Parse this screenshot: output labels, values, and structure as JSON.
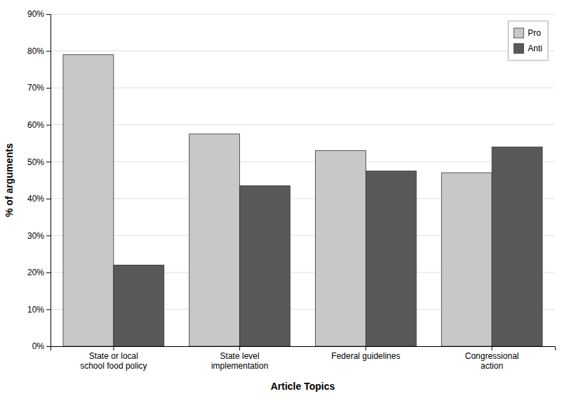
{
  "chart_data": {
    "type": "bar",
    "categories": [
      "State or local\nschool food policy",
      "State level\nimplementation",
      "Federal guidelines",
      "Congressional\naction"
    ],
    "series": [
      {
        "name": "Pro",
        "color": "#C8C8C8",
        "values": [
          79,
          57.5,
          53,
          47
        ]
      },
      {
        "name": "Anti",
        "color": "#595959",
        "values": [
          22,
          43.5,
          47.5,
          54
        ]
      }
    ],
    "xlabel": "Article Topics",
    "ylabel": "% of arguments",
    "ylim": [
      0,
      90
    ],
    "yticks": [
      {
        "value": 0,
        "label": "0%"
      },
      {
        "value": 10,
        "label": "10%"
      },
      {
        "value": 20,
        "label": "20%"
      },
      {
        "value": 30,
        "label": "30%"
      },
      {
        "value": 40,
        "label": "40%"
      },
      {
        "value": 50,
        "label": "50%"
      },
      {
        "value": 60,
        "label": "60%"
      },
      {
        "value": 70,
        "label": "70%"
      },
      {
        "value": 80,
        "label": "80%"
      },
      {
        "value": 90,
        "label": "90%"
      }
    ],
    "grid": true,
    "legend": "upper right"
  }
}
